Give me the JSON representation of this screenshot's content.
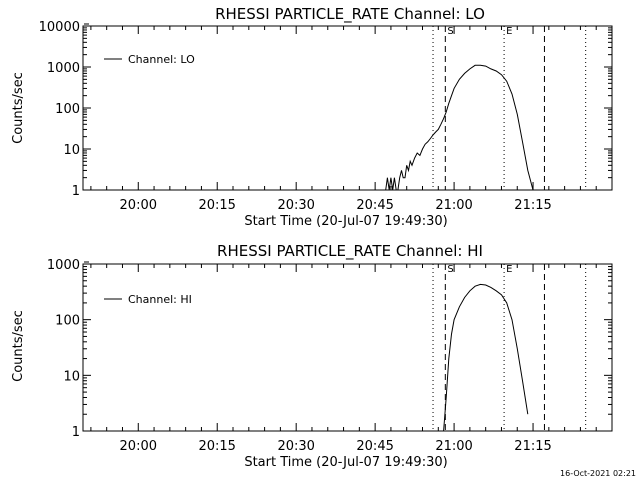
{
  "footer_timestamp": "16-Oct-2021 02:21",
  "chart_data": [
    {
      "type": "line",
      "title": "RHESSI PARTICLE_RATE Channel: LO",
      "xlabel": "Start Time (20-Jul-07 19:49:30)",
      "ylabel": "Counts/sec",
      "yscale": "log",
      "xlim": [
        "19:49:30",
        "21:30:00"
      ],
      "ylim": [
        1,
        10000
      ],
      "xticks": [
        "20:00",
        "20:15",
        "20:30",
        "20:45",
        "21:00",
        "21:15"
      ],
      "yticks": [
        {
          "value": 1,
          "label": "1"
        },
        {
          "value": 10,
          "label": "10"
        },
        {
          "value": 100,
          "label": "100"
        },
        {
          "value": 1000,
          "label": "1000"
        },
        {
          "value": 10000,
          "label": "10000"
        }
      ],
      "legend": {
        "position": "top-left",
        "entries": [
          "Channel: LO"
        ]
      },
      "markers": [
        {
          "time": "20:56:00",
          "style": "dotted"
        },
        {
          "time": "20:58:20",
          "style": "dashed",
          "label": "S"
        },
        {
          "time": "21:09:30",
          "style": "dotted",
          "label": "E"
        },
        {
          "time": "21:17:10",
          "style": "dashed"
        },
        {
          "time": "21:25:00",
          "style": "dotted"
        }
      ],
      "series": [
        {
          "name": "Channel: LO",
          "x": [
            "20:47:00",
            "20:47:20",
            "20:47:40",
            "20:48:00",
            "20:48:20",
            "20:48:40",
            "20:49:00",
            "20:49:20",
            "20:49:40",
            "20:50:00",
            "20:50:20",
            "20:50:40",
            "20:51:00",
            "20:51:20",
            "20:51:40",
            "20:52:00",
            "20:52:30",
            "20:53:00",
            "20:53:30",
            "20:54:00",
            "20:54:30",
            "20:55:00",
            "20:55:30",
            "20:56:00",
            "20:56:30",
            "20:57:00",
            "20:57:30",
            "20:58:00",
            "20:58:30",
            "20:59:00",
            "20:59:30",
            "21:00:00",
            "21:01:00",
            "21:02:00",
            "21:03:00",
            "21:04:00",
            "21:05:00",
            "21:06:00",
            "21:07:00",
            "21:08:00",
            "21:09:00",
            "21:10:00",
            "21:11:00",
            "21:12:00",
            "21:13:00",
            "21:14:00",
            "21:15:00"
          ],
          "y": [
            1,
            2,
            1,
            2,
            1,
            2,
            1,
            1,
            2,
            3,
            2,
            2,
            4,
            3,
            5,
            4,
            6,
            8,
            7,
            10,
            13,
            15,
            18,
            22,
            26,
            30,
            40,
            55,
            80,
            130,
            200,
            300,
            500,
            700,
            900,
            1100,
            1100,
            1050,
            900,
            800,
            650,
            450,
            220,
            70,
            15,
            3,
            1
          ]
        }
      ]
    },
    {
      "type": "line",
      "title": "RHESSI PARTICLE_RATE Channel: HI",
      "xlabel": "Start Time (20-Jul-07 19:49:30)",
      "ylabel": "Counts/sec",
      "yscale": "log",
      "xlim": [
        "19:49:30",
        "21:30:00"
      ],
      "ylim": [
        1,
        1000
      ],
      "xticks": [
        "20:00",
        "20:15",
        "20:30",
        "20:45",
        "21:00",
        "21:15"
      ],
      "yticks": [
        {
          "value": 1,
          "label": "1"
        },
        {
          "value": 10,
          "label": "10"
        },
        {
          "value": 100,
          "label": "100"
        },
        {
          "value": 1000,
          "label": "1000"
        }
      ],
      "legend": {
        "position": "top-left",
        "entries": [
          "Channel: HI"
        ]
      },
      "markers": [
        {
          "time": "20:56:00",
          "style": "dotted"
        },
        {
          "time": "20:58:20",
          "style": "dashed",
          "label": "S"
        },
        {
          "time": "21:09:30",
          "style": "dotted",
          "label": "E"
        },
        {
          "time": "21:17:10",
          "style": "dashed"
        },
        {
          "time": "21:25:00",
          "style": "dotted"
        }
      ],
      "series": [
        {
          "name": "Channel: HI",
          "x": [
            "20:58:00",
            "20:58:30",
            "20:59:00",
            "20:59:30",
            "21:00:00",
            "21:01:00",
            "21:02:00",
            "21:03:00",
            "21:04:00",
            "21:05:00",
            "21:06:00",
            "21:07:00",
            "21:08:00",
            "21:09:00",
            "21:10:00",
            "21:11:00",
            "21:12:00",
            "21:13:00",
            "21:14:00"
          ],
          "y": [
            1,
            4,
            20,
            55,
            100,
            170,
            250,
            330,
            400,
            430,
            420,
            380,
            330,
            280,
            200,
            100,
            30,
            8,
            2
          ]
        }
      ]
    }
  ]
}
